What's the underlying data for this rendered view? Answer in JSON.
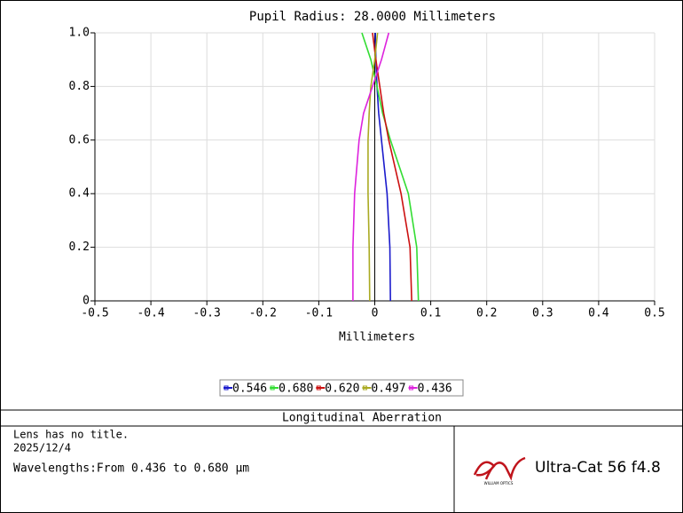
{
  "chart_data": {
    "type": "line",
    "title": "Pupil Radius: 28.0000 Millimeters",
    "xlabel": "Millimeters",
    "pupil": [
      0,
      0.2,
      0.4,
      0.6,
      0.7,
      0.8,
      0.9,
      1.0
    ],
    "series": [
      {
        "name": "0.546",
        "color": "#1a1acc",
        "values": [
          0.028,
          0.027,
          0.022,
          0.012,
          0.007,
          0.004,
          0.002,
          0.001
        ]
      },
      {
        "name": "0.680",
        "color": "#33dd33",
        "values": [
          0.078,
          0.075,
          0.06,
          0.028,
          0.014,
          0.004,
          -0.007,
          -0.023
        ]
      },
      {
        "name": "0.620",
        "color": "#cc1111",
        "values": [
          0.066,
          0.063,
          0.047,
          0.025,
          0.016,
          0.009,
          0.002,
          -0.004
        ]
      },
      {
        "name": "0.497",
        "color": "#aaaa22",
        "values": [
          -0.009,
          -0.01,
          -0.012,
          -0.012,
          -0.01,
          -0.007,
          0,
          0.005
        ]
      },
      {
        "name": "0.436",
        "color": "#dd22dd",
        "values": [
          -0.039,
          -0.039,
          -0.036,
          -0.028,
          -0.02,
          -0.004,
          0.012,
          0.025
        ]
      }
    ],
    "xlim": [
      -0.5,
      0.5
    ],
    "xticks": [
      -0.5,
      -0.4,
      -0.3,
      -0.2,
      -0.1,
      0,
      0.1,
      0.2,
      0.3,
      0.4,
      0.5
    ],
    "ylim": [
      0,
      1
    ],
    "yticks": [
      0,
      0.2,
      0.4,
      0.6,
      0.8,
      {
        "value": 1,
        "label": "1.0"
      }
    ],
    "grid": true
  },
  "footer": {
    "plot_name": "Longitudinal Aberration",
    "lens_title": "Lens has no title.",
    "date": "2025/12/4",
    "wavelengths": "Wavelengths:From 0.436 to 0.680 µm",
    "brand": "WILLIAM OPTICS",
    "product": "Ultra-Cat 56 f4.8"
  }
}
